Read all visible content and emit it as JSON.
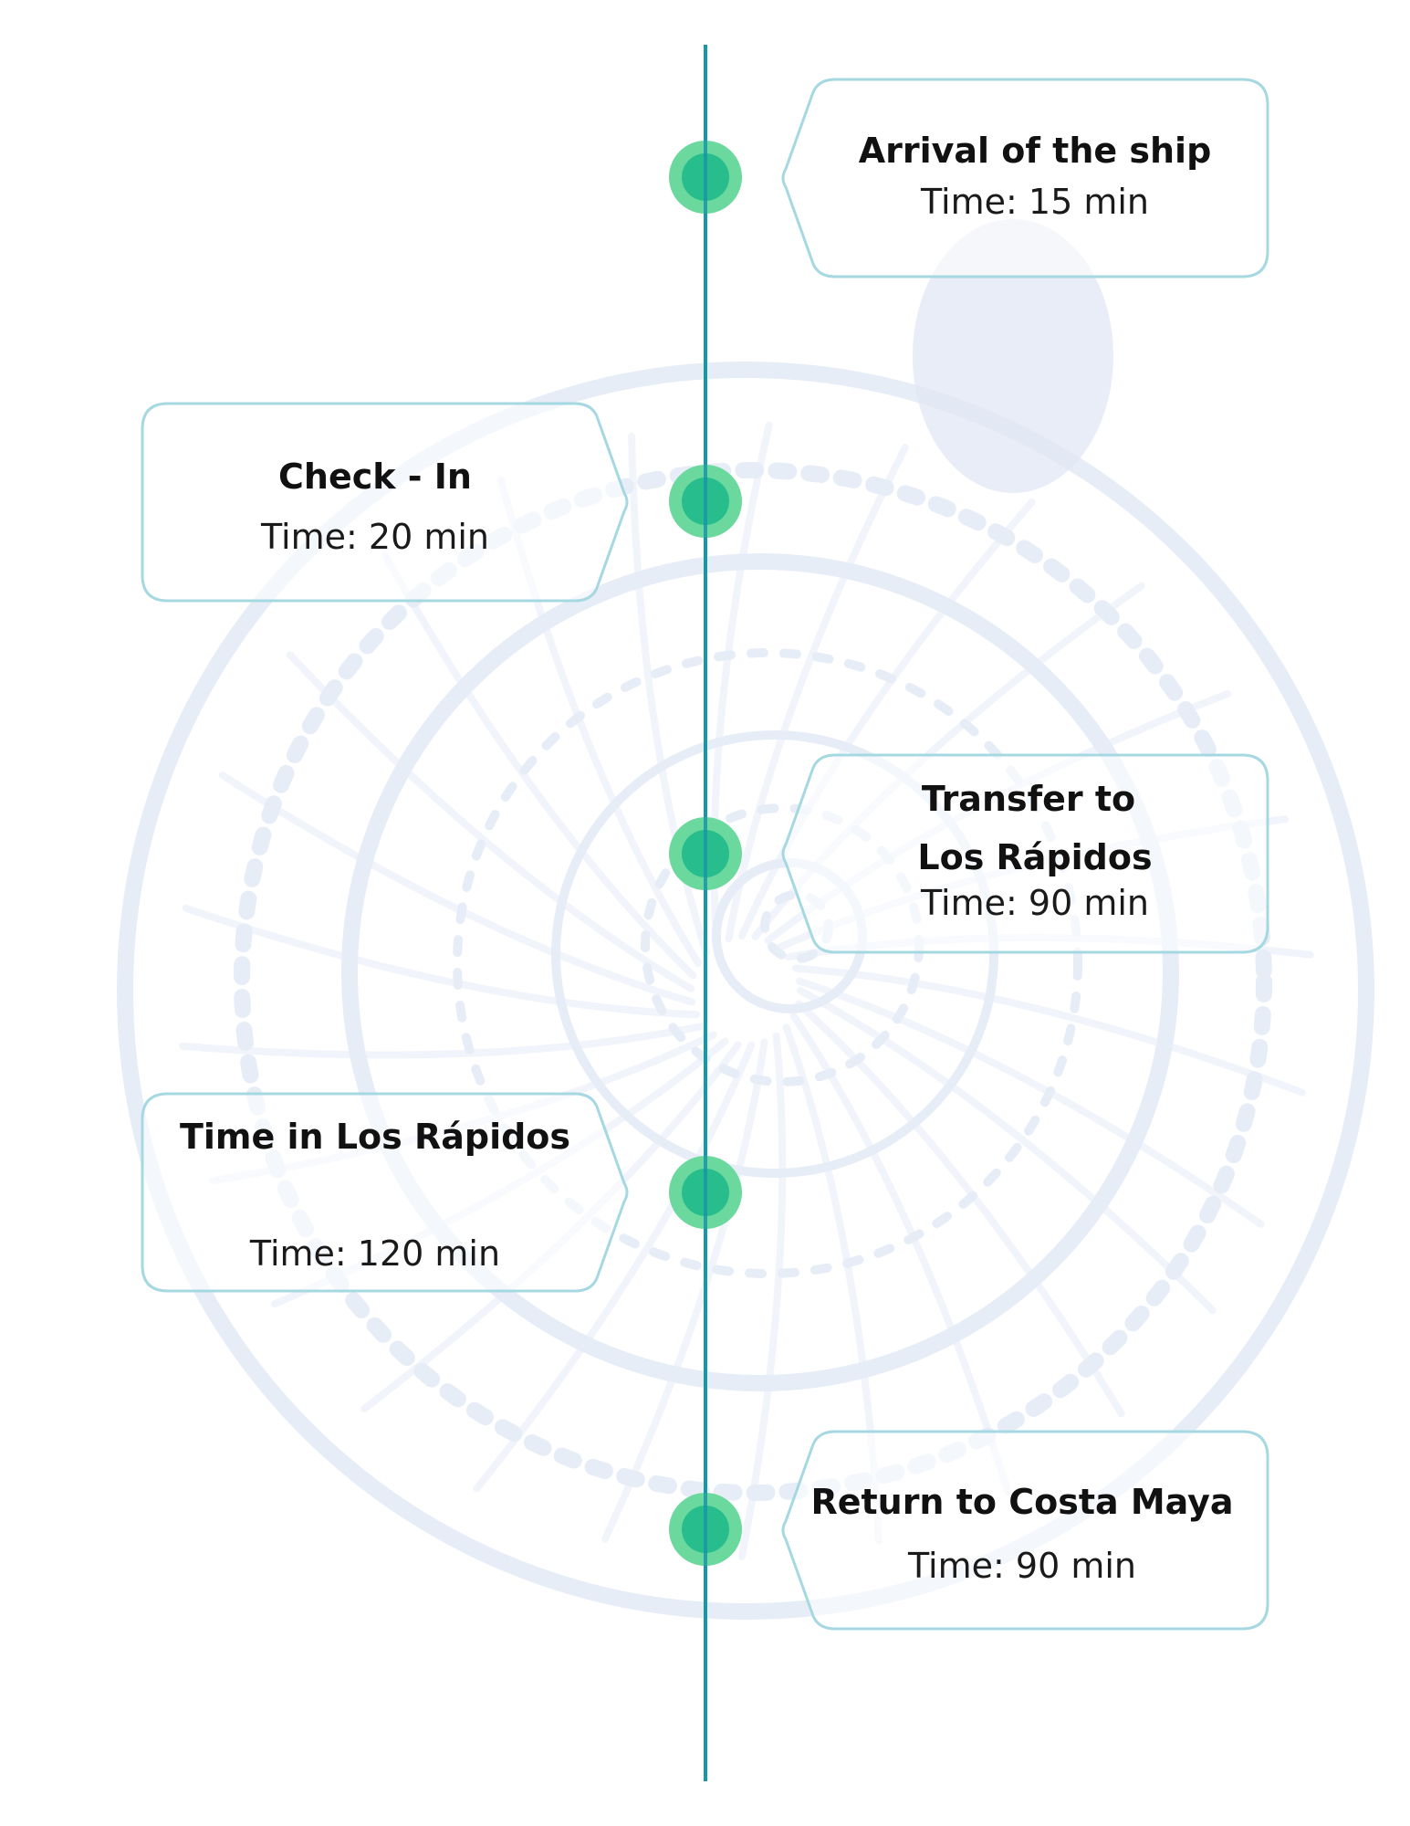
{
  "colors": {
    "timeline_line": "#1798a8",
    "dot_outer": "#6bd89e",
    "dot_inner": "#27bd8c",
    "card_border": "#a6d8e2",
    "background_art": "#c9d6ec"
  },
  "background_image": "nautilus-shell-watercolor",
  "events": [
    {
      "title_lines": [
        "Arrival of the ship"
      ],
      "time": "Time: 15 min",
      "side": "right"
    },
    {
      "title_lines": [
        "Check - In"
      ],
      "time": "Time: 20 min",
      "side": "left"
    },
    {
      "title_lines": [
        "Transfer to",
        "Los Rápidos"
      ],
      "time": "Time: 90 min",
      "side": "right"
    },
    {
      "title_lines": [
        "Time in Los Rápidos"
      ],
      "time": "Time: 120 min",
      "side": "left"
    },
    {
      "title_lines": [
        "Return to Costa Maya"
      ],
      "time": "Time: 90 min",
      "side": "right"
    }
  ]
}
